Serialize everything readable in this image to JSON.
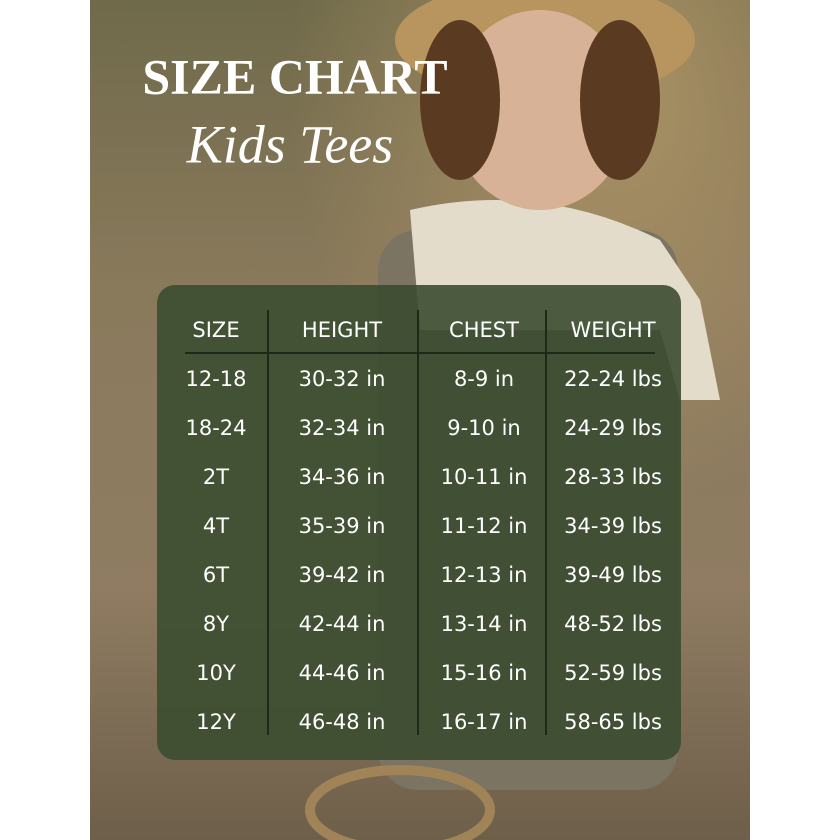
{
  "header": {
    "title": "SIZE CHART",
    "subtitle": "Kids Tees"
  },
  "table": {
    "columns": [
      "SIZE",
      "HEIGHT",
      "CHEST",
      "WEIGHT"
    ],
    "rows": [
      [
        "12-18",
        "30-32 in",
        "8-9 in",
        "22-24 lbs"
      ],
      [
        "18-24",
        "32-34 in",
        "9-10 in",
        "24-29 lbs"
      ],
      [
        "2T",
        "34-36 in",
        "10-11 in",
        "28-33 lbs"
      ],
      [
        "4T",
        "35-39 in",
        "11-12 in",
        "34-39 lbs"
      ],
      [
        "6T",
        "39-42 in",
        "12-13 in",
        "39-49 lbs"
      ],
      [
        "8Y",
        "42-44 in",
        "13-14 in",
        "48-52 lbs"
      ],
      [
        "10Y",
        "44-46 in",
        "15-16 in",
        "52-59 lbs"
      ],
      [
        "12Y",
        "46-48 in",
        "16-17 in",
        "58-65 lbs"
      ]
    ]
  }
}
